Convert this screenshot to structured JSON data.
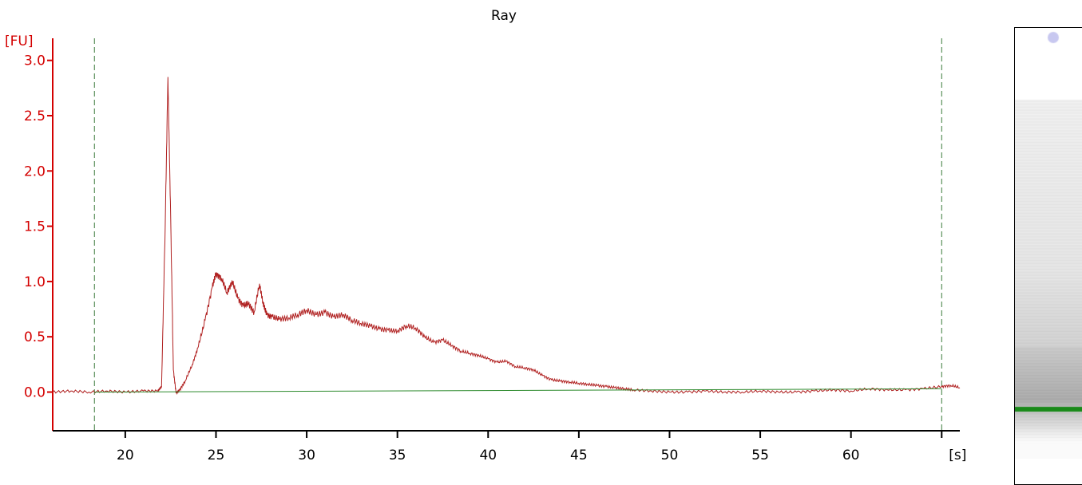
{
  "chart_data": {
    "type": "line",
    "title": "Ray",
    "ylabel": "[FU]",
    "xlabel": "[s]",
    "xlim": [
      16,
      66
    ],
    "ylim": [
      -0.35,
      3.2
    ],
    "xticks": [
      20,
      25,
      30,
      35,
      40,
      45,
      50,
      55,
      60,
      65
    ],
    "xtick_labels": [
      "20",
      "25",
      "30",
      "35",
      "40",
      "45",
      "50",
      "55",
      "60",
      "[s]"
    ],
    "yticks": [
      0.0,
      0.5,
      1.0,
      1.5,
      2.0,
      2.5,
      3.0
    ],
    "ytick_labels": [
      "0.0",
      "0.5",
      "1.0",
      "1.5",
      "2.0",
      "2.5",
      "3.0"
    ],
    "markers": [
      18.3,
      65.0
    ],
    "grid": false,
    "series": [
      {
        "color": "#b02020",
        "x": [
          16,
          17,
          18,
          19,
          20,
          21,
          21.8,
          22.0,
          22.2,
          22.35,
          22.5,
          22.65,
          22.8,
          23.0,
          23.3,
          23.7,
          24.0,
          24.4,
          24.8,
          25.0,
          25.3,
          25.6,
          25.9,
          26.2,
          26.5,
          26.8,
          27.1,
          27.4,
          27.6,
          27.8,
          28.1,
          28.5,
          29,
          29.5,
          30,
          30.5,
          31,
          31.5,
          32,
          32.5,
          33,
          33.5,
          34,
          34.5,
          35,
          35.5,
          36,
          36.5,
          37,
          37.5,
          38,
          38.5,
          39,
          39.5,
          40,
          40.5,
          41,
          41.5,
          42,
          42.5,
          43,
          43.5,
          44,
          44.5,
          45,
          45.5,
          46,
          46.5,
          47,
          47.5,
          48,
          49,
          50,
          51,
          52,
          53,
          54,
          55,
          56,
          57,
          58,
          59,
          60,
          61,
          62,
          63,
          64,
          65,
          65.5,
          66
        ],
        "values": [
          0.0,
          0.01,
          0.0,
          0.01,
          0.0,
          0.01,
          0.01,
          0.05,
          1.5,
          2.85,
          1.6,
          0.2,
          -0.01,
          0.02,
          0.1,
          0.25,
          0.4,
          0.65,
          0.95,
          1.07,
          1.03,
          0.9,
          1.0,
          0.85,
          0.78,
          0.8,
          0.72,
          0.98,
          0.8,
          0.7,
          0.68,
          0.66,
          0.67,
          0.7,
          0.74,
          0.7,
          0.72,
          0.68,
          0.7,
          0.65,
          0.62,
          0.6,
          0.57,
          0.56,
          0.55,
          0.6,
          0.58,
          0.5,
          0.45,
          0.47,
          0.42,
          0.37,
          0.35,
          0.33,
          0.3,
          0.27,
          0.28,
          0.23,
          0.22,
          0.2,
          0.15,
          0.11,
          0.1,
          0.09,
          0.08,
          0.07,
          0.06,
          0.05,
          0.04,
          0.03,
          0.02,
          0.01,
          0.0,
          0.0,
          0.01,
          0.0,
          0.0,
          0.01,
          0.0,
          0.0,
          0.01,
          0.02,
          0.01,
          0.03,
          0.02,
          0.02,
          0.03,
          0.05,
          0.06,
          0.04
        ]
      },
      {
        "color": "#2e8b2e",
        "x": [
          18.3,
          65.0
        ],
        "values": [
          0.0,
          0.03
        ]
      }
    ]
  },
  "gel": {
    "marker_color": "#1a8a1a",
    "dot_color": "#c8c8f0"
  }
}
